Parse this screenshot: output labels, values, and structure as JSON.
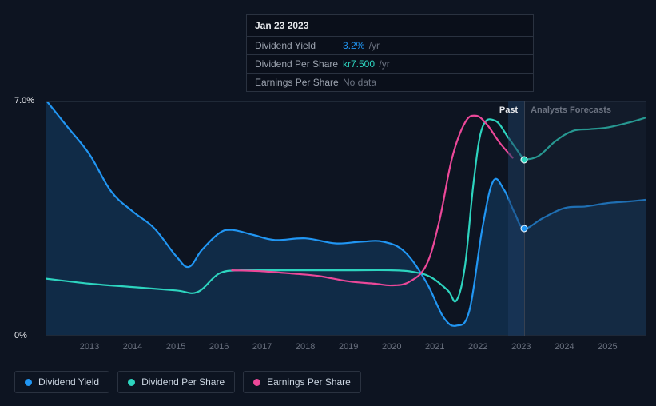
{
  "tooltip": {
    "date": "Jan 23 2023",
    "rows": [
      {
        "label": "Dividend Yield",
        "value": "3.2%",
        "unit": "/yr",
        "value_color": "#2196f3"
      },
      {
        "label": "Dividend Per Share",
        "value": "kr7.500",
        "unit": "/yr",
        "value_color": "#2dd4bf"
      },
      {
        "label": "Earnings Per Share",
        "value": "No data",
        "unit": "",
        "value_color": "#6b7280"
      }
    ]
  },
  "chart": {
    "type": "line-area",
    "background_color": "#0d1421",
    "grid_color": "#1f2937",
    "y_axis": {
      "min": 0,
      "max": 7.0,
      "ticks": [
        {
          "v": 7.0,
          "label": "7.0%"
        },
        {
          "v": 0,
          "label": "0%"
        }
      ],
      "label_color": "#e5e7eb",
      "fontsize": 11
    },
    "x_axis": {
      "min": 2012.0,
      "max": 2025.9,
      "ticks": [
        2013,
        2014,
        2015,
        2016,
        2017,
        2018,
        2019,
        2020,
        2021,
        2022,
        2023,
        2024,
        2025
      ],
      "label_color": "#6b7280",
      "fontsize": 11
    },
    "past_forecast_split": 2023.07,
    "region_labels": {
      "past": "Past",
      "forecast": "Analysts Forecasts"
    },
    "forecast_bg": "rgba(30,41,59,0.35)",
    "highlight_band": {
      "start": 2022.7,
      "end": 2023.07,
      "color": "rgba(30,58,95,0.55)"
    },
    "vline_x": 2023.07,
    "vline_color": "#374151",
    "series": [
      {
        "name": "Dividend Yield",
        "color": "#2196f3",
        "line_width": 2.2,
        "area_fill": "rgba(33,150,243,0.18)",
        "marker_at": {
          "x": 2023.07,
          "y": 3.2
        },
        "points": [
          [
            2012.0,
            7.0
          ],
          [
            2012.5,
            6.2
          ],
          [
            2013.0,
            5.4
          ],
          [
            2013.5,
            4.3
          ],
          [
            2014.0,
            3.7
          ],
          [
            2014.5,
            3.2
          ],
          [
            2015.0,
            2.38
          ],
          [
            2015.3,
            2.05
          ],
          [
            2015.6,
            2.55
          ],
          [
            2016.0,
            3.05
          ],
          [
            2016.3,
            3.15
          ],
          [
            2016.8,
            3.0
          ],
          [
            2017.3,
            2.85
          ],
          [
            2018.0,
            2.9
          ],
          [
            2018.7,
            2.75
          ],
          [
            2019.3,
            2.8
          ],
          [
            2019.8,
            2.8
          ],
          [
            2020.3,
            2.5
          ],
          [
            2020.8,
            1.6
          ],
          [
            2021.2,
            0.55
          ],
          [
            2021.5,
            0.3
          ],
          [
            2021.8,
            0.75
          ],
          [
            2022.1,
            3.2
          ],
          [
            2022.35,
            4.6
          ],
          [
            2022.6,
            4.35
          ],
          [
            2022.85,
            3.65
          ],
          [
            2023.07,
            3.2
          ],
          [
            2023.5,
            3.5
          ],
          [
            2024.0,
            3.8
          ],
          [
            2024.5,
            3.85
          ],
          [
            2025.0,
            3.95
          ],
          [
            2025.5,
            4.0
          ],
          [
            2025.9,
            4.05
          ]
        ]
      },
      {
        "name": "Dividend Per Share",
        "color": "#2dd4bf",
        "line_width": 2.2,
        "marker_at": {
          "x": 2023.07,
          "y": 5.25
        },
        "points": [
          [
            2012.0,
            1.7
          ],
          [
            2013.0,
            1.55
          ],
          [
            2014.0,
            1.45
          ],
          [
            2015.0,
            1.35
          ],
          [
            2015.5,
            1.3
          ],
          [
            2016.0,
            1.85
          ],
          [
            2016.5,
            1.95
          ],
          [
            2017.0,
            1.95
          ],
          [
            2018.0,
            1.95
          ],
          [
            2019.0,
            1.95
          ],
          [
            2020.0,
            1.95
          ],
          [
            2020.5,
            1.9
          ],
          [
            2020.9,
            1.75
          ],
          [
            2021.3,
            1.35
          ],
          [
            2021.5,
            1.05
          ],
          [
            2021.7,
            2.1
          ],
          [
            2021.9,
            4.6
          ],
          [
            2022.1,
            6.2
          ],
          [
            2022.4,
            6.4
          ],
          [
            2022.7,
            5.9
          ],
          [
            2023.0,
            5.35
          ],
          [
            2023.07,
            5.25
          ],
          [
            2023.4,
            5.35
          ],
          [
            2023.8,
            5.8
          ],
          [
            2024.2,
            6.1
          ],
          [
            2024.6,
            6.15
          ],
          [
            2025.0,
            6.2
          ],
          [
            2025.5,
            6.35
          ],
          [
            2025.9,
            6.5
          ]
        ]
      },
      {
        "name": "Earnings Per Share",
        "color": "#ec4899",
        "line_width": 2.2,
        "points": [
          [
            2016.3,
            1.95
          ],
          [
            2017.0,
            1.92
          ],
          [
            2017.7,
            1.85
          ],
          [
            2018.3,
            1.78
          ],
          [
            2019.0,
            1.62
          ],
          [
            2019.6,
            1.55
          ],
          [
            2020.0,
            1.5
          ],
          [
            2020.4,
            1.6
          ],
          [
            2020.8,
            2.1
          ],
          [
            2021.1,
            3.4
          ],
          [
            2021.4,
            5.3
          ],
          [
            2021.7,
            6.35
          ],
          [
            2021.95,
            6.55
          ],
          [
            2022.2,
            6.3
          ],
          [
            2022.5,
            5.75
          ],
          [
            2022.8,
            5.3
          ]
        ]
      }
    ]
  },
  "legend": {
    "items": [
      {
        "label": "Dividend Yield",
        "color": "#2196f3"
      },
      {
        "label": "Dividend Per Share",
        "color": "#2dd4bf"
      },
      {
        "label": "Earnings Per Share",
        "color": "#ec4899"
      }
    ],
    "border_color": "#2a3240",
    "text_color": "#cbd5e1",
    "fontsize": 12
  }
}
